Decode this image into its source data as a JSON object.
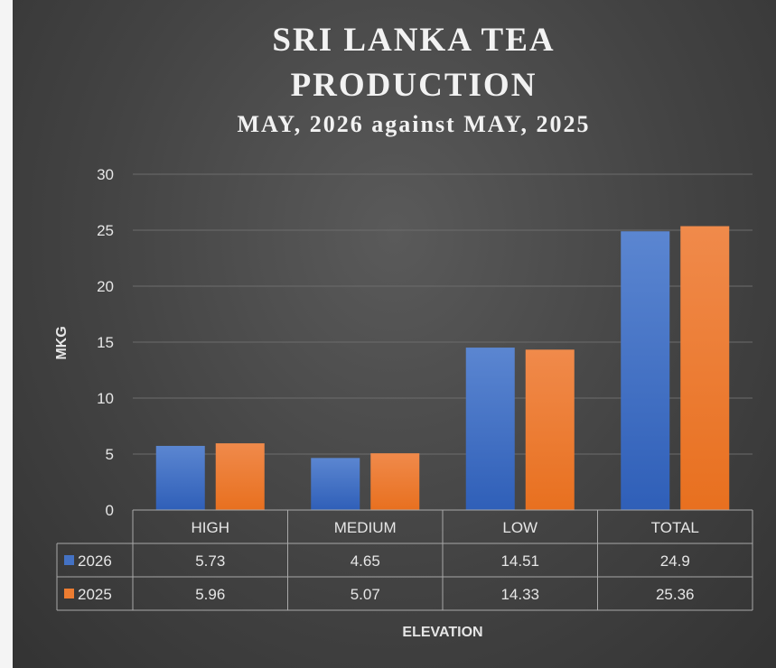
{
  "chart_data": {
    "type": "bar",
    "title": "SRI LANKA TEA PRODUCTION",
    "title_lines": [
      "SRI LANKA TEA",
      "PRODUCTION"
    ],
    "subtitle": "MAY, 2026 against MAY, 2025",
    "xlabel": "ELEVATION",
    "ylabel": "MKG",
    "ylim": [
      0,
      30
    ],
    "yticks": [
      0,
      5,
      10,
      15,
      20,
      25,
      30
    ],
    "categories": [
      "HIGH",
      "MEDIUM",
      "LOW",
      "TOTAL"
    ],
    "series": [
      {
        "name": "2026",
        "values": [
          5.73,
          4.65,
          14.51,
          24.9
        ],
        "labels": [
          "5.73",
          "4.65",
          "14.51",
          "24.9"
        ],
        "color": "#4472c4"
      },
      {
        "name": "2025",
        "values": [
          5.96,
          5.07,
          14.33,
          25.36
        ],
        "labels": [
          "5.96",
          "5.07",
          "14.33",
          "25.36"
        ],
        "color": "#ed7d31"
      }
    ],
    "grid": true,
    "legend": "data-table",
    "data_table": true
  }
}
